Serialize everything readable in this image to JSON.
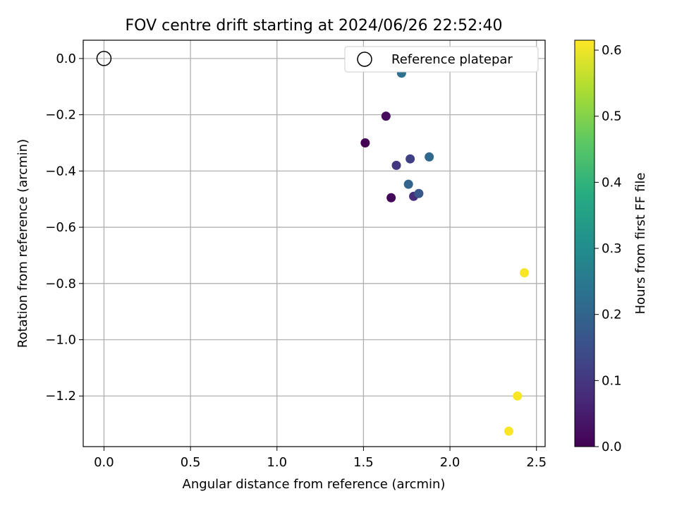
{
  "chart_data": {
    "type": "scatter",
    "title": "FOV centre drift starting at 2024/06/26 22:52:40",
    "xlabel": "Angular distance from reference (arcmin)",
    "ylabel": "Rotation from reference (arcmin)",
    "xlim": [
      -0.12,
      2.55
    ],
    "ylim": [
      -1.38,
      0.065
    ],
    "xticks": [
      0.0,
      0.5,
      1.0,
      1.5,
      2.0,
      2.5
    ],
    "xtick_labels": [
      "0.0",
      "0.5",
      "1.0",
      "1.5",
      "2.0",
      "2.5"
    ],
    "yticks": [
      0.0,
      -0.2,
      -0.4,
      -0.6,
      -0.8,
      -1.0,
      -1.2
    ],
    "ytick_labels": [
      "0.0",
      "−0.2",
      "−0.4",
      "−0.6",
      "−0.8",
      "−1.0",
      "−1.2"
    ],
    "grid": true,
    "legend": {
      "placement": "top-right",
      "entries": [
        {
          "label": "Reference platepar",
          "marker": "open-circle",
          "color": "#000000"
        }
      ]
    },
    "reference_point": {
      "x": 0.0,
      "y": 0.0
    },
    "colorbar": {
      "label": "Hours from first FF file",
      "range": [
        0.0,
        0.615
      ],
      "ticks": [
        0.0,
        0.1,
        0.2,
        0.3,
        0.4,
        0.5,
        0.6
      ],
      "tick_labels": [
        "0.0",
        "0.1",
        "0.2",
        "0.3",
        "0.4",
        "0.5",
        "0.6"
      ],
      "colormap": "viridis"
    },
    "points": [
      {
        "x": 1.51,
        "y": -0.3,
        "hours": 0.0
      },
      {
        "x": 1.66,
        "y": -0.495,
        "hours": 0.01
      },
      {
        "x": 1.63,
        "y": -0.205,
        "hours": 0.02
      },
      {
        "x": 1.79,
        "y": -0.49,
        "hours": 0.08
      },
      {
        "x": 1.69,
        "y": -0.38,
        "hours": 0.1
      },
      {
        "x": 1.77,
        "y": -0.357,
        "hours": 0.12
      },
      {
        "x": 1.82,
        "y": -0.48,
        "hours": 0.17
      },
      {
        "x": 1.76,
        "y": -0.447,
        "hours": 0.2
      },
      {
        "x": 1.88,
        "y": -0.35,
        "hours": 0.21
      },
      {
        "x": 1.72,
        "y": -0.052,
        "hours": 0.23
      },
      {
        "x": 2.43,
        "y": -0.762,
        "hours": 0.61
      },
      {
        "x": 2.39,
        "y": -1.2,
        "hours": 0.61
      },
      {
        "x": 2.34,
        "y": -1.325,
        "hours": 0.61
      }
    ]
  }
}
